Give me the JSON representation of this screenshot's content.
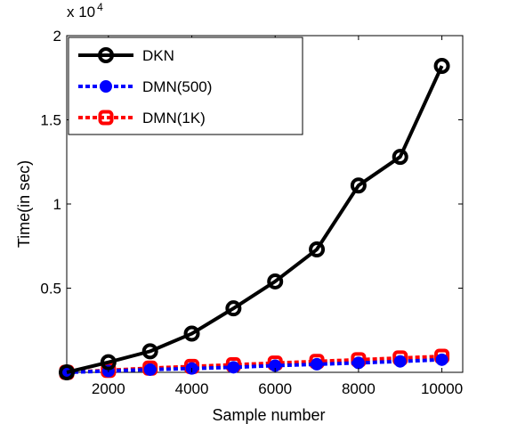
{
  "chart_data": {
    "type": "line",
    "x": [
      1000,
      2000,
      3000,
      4000,
      5000,
      6000,
      7000,
      8000,
      9000,
      10000
    ],
    "xlim": [
      1000,
      10500
    ],
    "ylim": [
      0,
      20000
    ],
    "xticks": [
      2000,
      4000,
      6000,
      8000,
      10000
    ],
    "xtick_labels": [
      "2000",
      "4000",
      "6000",
      "8000",
      "10000"
    ],
    "yticks": [
      5000,
      10000,
      15000,
      20000
    ],
    "ytick_labels": [
      "0.5",
      "1",
      "1.5",
      "2"
    ],
    "y_exponent": "x 10",
    "y_exponent_power": "4",
    "xlabel": "Sample number",
    "ylabel": "Time(in sec)",
    "legend_position": "top-left",
    "grid": false,
    "series": [
      {
        "name": "DKN",
        "color": "#000000",
        "marker": "circle",
        "dashed": false,
        "values": [
          0,
          600,
          1250,
          2300,
          3800,
          5400,
          7300,
          11100,
          12800,
          18200
        ]
      },
      {
        "name": "DMN(500)",
        "color": "#0000ff",
        "marker": "filled-circle",
        "dashed": true,
        "values": [
          0,
          80,
          160,
          230,
          300,
          400,
          480,
          560,
          650,
          750
        ]
      },
      {
        "name": "DMN(1K)",
        "color": "#ff0000",
        "marker": "square",
        "dashed": true,
        "values": [
          0,
          120,
          250,
          350,
          450,
          550,
          650,
          750,
          850,
          950
        ]
      }
    ]
  }
}
